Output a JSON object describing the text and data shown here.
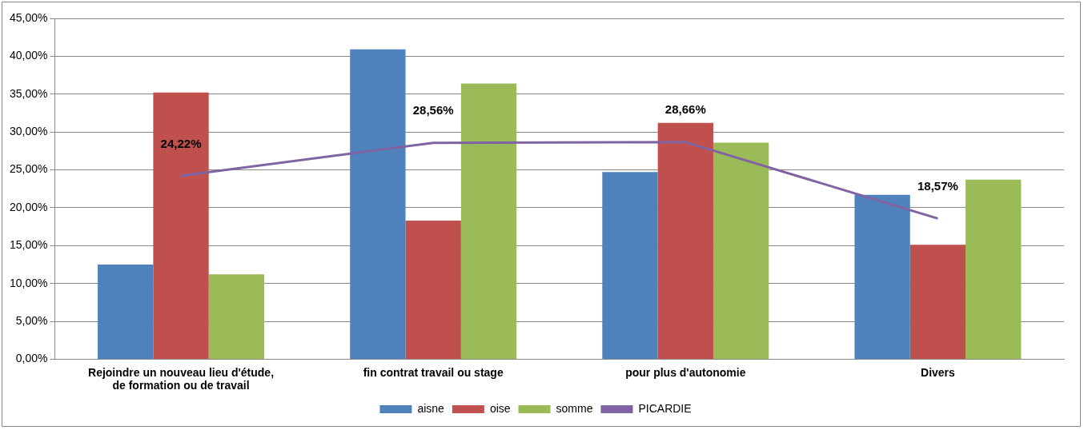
{
  "chart_data": {
    "type": "bar",
    "categories": [
      "Rejoindre un nouveau lieu d'étude,\nde formation ou de travail",
      "fin contrat travail ou stage",
      "pour plus d'autonomie",
      "Divers"
    ],
    "series": [
      {
        "name": "aisne",
        "color": "#4f81bd",
        "values": [
          12.5,
          40.9,
          24.7,
          21.7
        ]
      },
      {
        "name": "oise",
        "color": "#c0504d",
        "values": [
          35.2,
          18.3,
          31.2,
          15.1
        ]
      },
      {
        "name": "somme",
        "color": "#9bbb59",
        "values": [
          11.2,
          36.4,
          28.6,
          23.7
        ]
      },
      {
        "name": "PICARDIE",
        "type": "line",
        "color": "#8064a2",
        "marker": "none",
        "values": [
          24.22,
          28.56,
          28.66,
          18.57
        ],
        "value_labels": [
          "24,22%",
          "28,56%",
          "28,66%",
          "18,57%"
        ]
      }
    ],
    "ylim": [
      0,
      45
    ],
    "yticks": [
      {
        "value": 0,
        "label": "0,00%"
      },
      {
        "value": 5,
        "label": "5,00%"
      },
      {
        "value": 10,
        "label": "10,00%"
      },
      {
        "value": 15,
        "label": "15,00%"
      },
      {
        "value": 20,
        "label": "20,00%"
      },
      {
        "value": 25,
        "label": "25,00%"
      },
      {
        "value": 30,
        "label": "30,00%"
      },
      {
        "value": 35,
        "label": "35,00%"
      },
      {
        "value": 40,
        "label": "40,00%"
      },
      {
        "value": 45,
        "label": "45,00%"
      }
    ],
    "grid": "y",
    "legend": "bottom"
  }
}
